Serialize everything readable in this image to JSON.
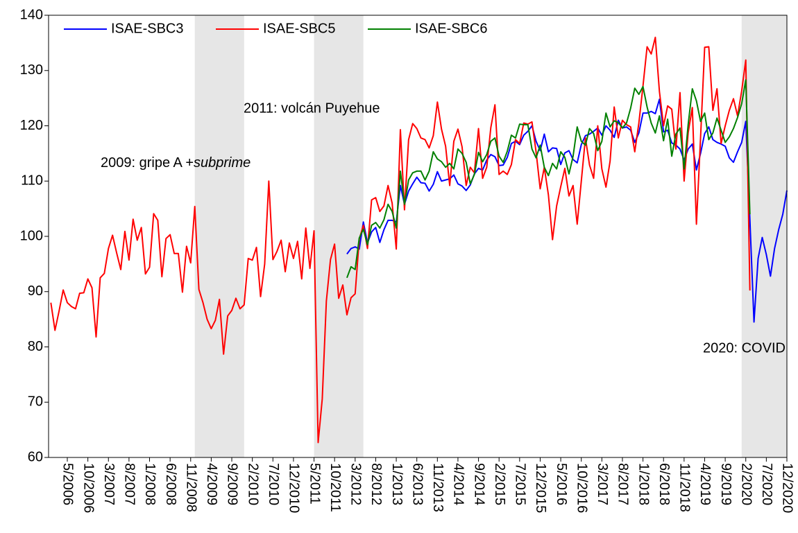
{
  "chart_data": {
    "type": "line",
    "annotations": [
      [
        "2009: gripe A +",
        "subprime"
      ],
      [
        "2011: volcán Puyehue"
      ],
      [
        "2020: COVID"
      ]
    ],
    "categories": [
      null,
      null,
      null,
      null,
      "5/2006",
      null,
      null,
      null,
      null,
      "10/2006",
      null,
      null,
      null,
      null,
      "3/2007",
      null,
      null,
      null,
      null,
      "8/2007",
      null,
      null,
      null,
      null,
      "1/2008",
      null,
      null,
      null,
      null,
      "6/2008",
      null,
      null,
      null,
      null,
      "11/2008",
      null,
      null,
      null,
      null,
      "4/2009",
      null,
      null,
      null,
      null,
      "9/2009",
      null,
      null,
      null,
      null,
      "2/2010",
      null,
      null,
      null,
      null,
      "7/2010",
      null,
      null,
      null,
      null,
      "12/2010",
      null,
      null,
      null,
      null,
      "5/2011",
      null,
      null,
      null,
      null,
      "10/2011",
      null,
      null,
      null,
      null,
      "3/2012",
      null,
      null,
      null,
      null,
      "8/2012",
      null,
      null,
      null,
      null,
      "1/2013",
      null,
      null,
      null,
      null,
      "6/2013",
      null,
      null,
      null,
      null,
      "11/2013",
      null,
      null,
      null,
      null,
      "4/2014",
      null,
      null,
      null,
      null,
      "9/2014",
      null,
      null,
      null,
      null,
      "2/2015",
      null,
      null,
      null,
      null,
      "7/2015",
      null,
      null,
      null,
      null,
      "12/2015",
      null,
      null,
      null,
      null,
      "5/2016",
      null,
      null,
      null,
      null,
      "10/2016",
      null,
      null,
      null,
      null,
      "3/2017",
      null,
      null,
      null,
      null,
      "8/2017",
      null,
      null,
      null,
      null,
      "1/2018",
      null,
      null,
      null,
      null,
      "6/2018",
      null,
      null,
      null,
      null,
      "11/2018",
      null,
      null,
      null,
      null,
      "4/2019",
      null,
      null,
      null,
      null,
      "9/2019",
      null,
      null,
      null,
      null,
      "2/2020",
      null,
      null,
      null,
      null,
      "7/2020",
      null,
      null,
      null,
      null,
      "12/2020"
    ],
    "series": [
      {
        "name": "ISAE-SBC3",
        "color": "#0000ff",
        "values": [
          null,
          null,
          null,
          null,
          null,
          null,
          null,
          null,
          null,
          null,
          null,
          null,
          null,
          null,
          null,
          null,
          null,
          null,
          null,
          null,
          null,
          null,
          null,
          null,
          null,
          null,
          null,
          null,
          null,
          null,
          null,
          null,
          null,
          null,
          null,
          null,
          null,
          null,
          null,
          null,
          null,
          null,
          null,
          null,
          null,
          null,
          null,
          null,
          null,
          null,
          null,
          null,
          null,
          null,
          null,
          null,
          null,
          null,
          null,
          null,
          null,
          null,
          null,
          null,
          null,
          null,
          null,
          null,
          null,
          null,
          null,
          null,
          96.8,
          97.8,
          98.1,
          97.7,
          102.6,
          98.8,
          100.8,
          101.6,
          98.9,
          101.2,
          102.9,
          102.9,
          102.6,
          109.2,
          105.8,
          108.2,
          109.5,
          110.7,
          109.7,
          109.6,
          108.2,
          109.4,
          111.7,
          110,
          110.2,
          110.4,
          111.1,
          109.5,
          109.1,
          108.3,
          109.3,
          111.3,
          112.3,
          112,
          113.8,
          114.8,
          114.4,
          112.8,
          112.9,
          114.3,
          116.8,
          117.2,
          116.6,
          118.3,
          119,
          120,
          117.2,
          115.5,
          118.5,
          115.3,
          116,
          115.9,
          113,
          115.1,
          115.5,
          113.9,
          113.3,
          116.6,
          118.2,
          118.5,
          119,
          119.6,
          118.3,
          120,
          119.2,
          117.9,
          121,
          119.6,
          119.8,
          119.2,
          117,
          118.7,
          122.3,
          122.3,
          122.6,
          122.2,
          124.8,
          118.9,
          119.2,
          116.9,
          116.5,
          115.8,
          113.8,
          115.8,
          116.7,
          112,
          115,
          118.6,
          119.8,
          117.5,
          117,
          116.7,
          116.3,
          114.2,
          113.4,
          115.3,
          117,
          120.8,
          103,
          84.5,
          96,
          99.8,
          96.7,
          92.8,
          97.8,
          101.2,
          104,
          108.3
        ]
      },
      {
        "name": "ISAE-SBC5",
        "color": "#ff0000",
        "values": [
          88,
          83,
          86.5,
          90.3,
          88,
          87.3,
          86.9,
          89.7,
          89.8,
          92.3,
          90.7,
          81.8,
          92.5,
          93.3,
          97.8,
          100.2,
          97,
          94,
          100.9,
          95.7,
          103.1,
          99.3,
          101.6,
          93.2,
          94.4,
          104.1,
          102.9,
          92.7,
          99.6,
          100.3,
          96.9,
          96.9,
          89.9,
          98.2,
          95.2,
          105.4,
          90.4,
          88,
          85,
          83.3,
          84.8,
          88.6,
          78.7,
          85.6,
          86.6,
          88.8,
          86.9,
          87.6,
          96,
          95.7,
          98,
          89.1,
          95,
          110,
          95.8,
          97.3,
          99.3,
          93.6,
          98.8,
          96,
          99.1,
          92.3,
          101.5,
          94.2,
          101,
          62.7,
          70.6,
          88.3,
          95.8,
          98.6,
          88.8,
          91.2,
          85.8,
          88.9,
          89.6,
          99.5,
          102,
          97.8,
          106.6,
          107,
          104.5,
          105.5,
          109.2,
          106,
          97.7,
          119.3,
          104.8,
          117.5,
          120.4,
          119.5,
          117.8,
          117.5,
          116,
          118.2,
          124.3,
          119.4,
          116.3,
          109.2,
          117.2,
          119.4,
          116.2,
          109.2,
          112.5,
          111.5,
          119.5,
          110.5,
          112.5,
          119.7,
          123.8,
          111.2,
          111.8,
          111.2,
          113,
          117.5,
          116.8,
          120.5,
          120.3,
          120.7,
          115.3,
          108.6,
          112.5,
          107.5,
          99.4,
          105.5,
          109,
          112.3,
          107.3,
          109.2,
          102.2,
          110,
          117.8,
          112.9,
          110.5,
          120,
          112.2,
          108.9,
          113.6,
          123.4,
          117.8,
          121,
          120.2,
          119.8,
          115.3,
          120.5,
          127.2,
          134.3,
          133,
          136,
          126.2,
          120,
          123.6,
          123,
          115.8,
          126,
          110,
          118.8,
          123.3,
          102.2,
          117.8,
          134.2,
          134.3,
          122.8,
          126.7,
          116.8,
          120,
          122.8,
          124.9,
          121.8,
          126.3,
          131.9,
          90.2,
          null,
          null,
          null,
          null,
          null,
          null,
          null,
          null,
          null
        ]
      },
      {
        "name": "ISAE-SBC6",
        "color": "#008000",
        "values": [
          null,
          null,
          null,
          null,
          null,
          null,
          null,
          null,
          null,
          null,
          null,
          null,
          null,
          null,
          null,
          null,
          null,
          null,
          null,
          null,
          null,
          null,
          null,
          null,
          null,
          null,
          null,
          null,
          null,
          null,
          null,
          null,
          null,
          null,
          null,
          null,
          null,
          null,
          null,
          null,
          null,
          null,
          null,
          null,
          null,
          null,
          null,
          null,
          null,
          null,
          null,
          null,
          null,
          null,
          null,
          null,
          null,
          null,
          null,
          null,
          null,
          null,
          null,
          null,
          null,
          null,
          null,
          null,
          null,
          null,
          null,
          null,
          92.5,
          94.5,
          94,
          99.7,
          101.3,
          98.5,
          102,
          102.5,
          101.5,
          103,
          105.8,
          104.5,
          101.5,
          111.8,
          105.8,
          110.2,
          111.5,
          111.8,
          111.8,
          110.2,
          111.8,
          115.3,
          114,
          113.5,
          112.5,
          113.2,
          112.2,
          115.8,
          115,
          113.4,
          109.5,
          111.2,
          115.2,
          113.5,
          114.8,
          117.2,
          117.8,
          114.5,
          113.4,
          115.4,
          118.3,
          117.8,
          120.3,
          120.2,
          120.2,
          115.8,
          114.2,
          116.5,
          112.5,
          111,
          113.2,
          112.2,
          115.3,
          114.3,
          111.3,
          114.5,
          119.8,
          117.2,
          116.5,
          119.5,
          118.6,
          115.5,
          117.2,
          122.3,
          119.8,
          120.9,
          120.6,
          119.6,
          120.5,
          123.2,
          126.8,
          125.7,
          127.1,
          123.4,
          120.5,
          118.7,
          121.8,
          117.3,
          121.2,
          114.5,
          118.5,
          119.6,
          112.2,
          120.3,
          126.7,
          124.5,
          120.8,
          122.3,
          117.5,
          118.7,
          121.4,
          119.2,
          117,
          118,
          119.5,
          121.5,
          124,
          128.3,
          104,
          null,
          null,
          null,
          null,
          null,
          null,
          null,
          null,
          null
        ]
      }
    ],
    "shaded": [
      [
        35,
        47
      ],
      [
        64,
        76
      ],
      [
        168,
        179
      ]
    ],
    "shade_color": "#e6e6e6",
    "ylim": [
      60,
      140
    ],
    "yticks": [
      60,
      70,
      80,
      90,
      100,
      110,
      120,
      130,
      140
    ]
  }
}
